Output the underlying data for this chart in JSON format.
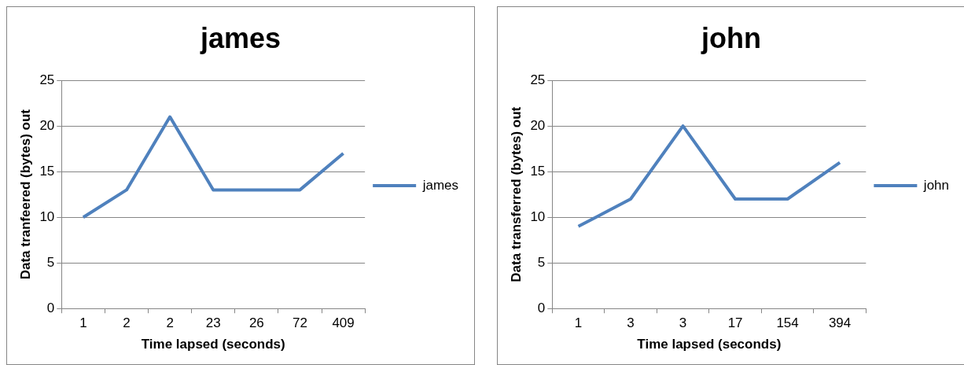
{
  "chart_data": [
    {
      "type": "line",
      "title": "james",
      "xlabel": "Time lapsed (seconds)",
      "ylabel": "Data tranfeered (bytes) out",
      "categories": [
        "1",
        "2",
        "2",
        "23",
        "26",
        "72",
        "409"
      ],
      "series": [
        {
          "name": "james",
          "color": "#4f81bd",
          "values": [
            10,
            13,
            21,
            13,
            13,
            13,
            17
          ]
        }
      ],
      "ylim": [
        0,
        25
      ],
      "yticks": [
        0,
        5,
        10,
        15,
        20,
        25
      ],
      "grid": "y",
      "legend": "right",
      "marker": "none",
      "line_style": "solid"
    },
    {
      "type": "line",
      "title": "john",
      "xlabel": "Time lapsed (seconds)",
      "ylabel": "Data transferred (bytes) out",
      "categories": [
        "1",
        "3",
        "3",
        "17",
        "154",
        "394"
      ],
      "series": [
        {
          "name": "john",
          "color": "#4f81bd",
          "values": [
            9,
            12,
            20,
            12,
            12,
            16
          ]
        }
      ],
      "ylim": [
        0,
        25
      ],
      "yticks": [
        0,
        5,
        10,
        15,
        20,
        25
      ],
      "grid": "y",
      "legend": "right",
      "marker": "none",
      "line_style": "solid"
    }
  ]
}
